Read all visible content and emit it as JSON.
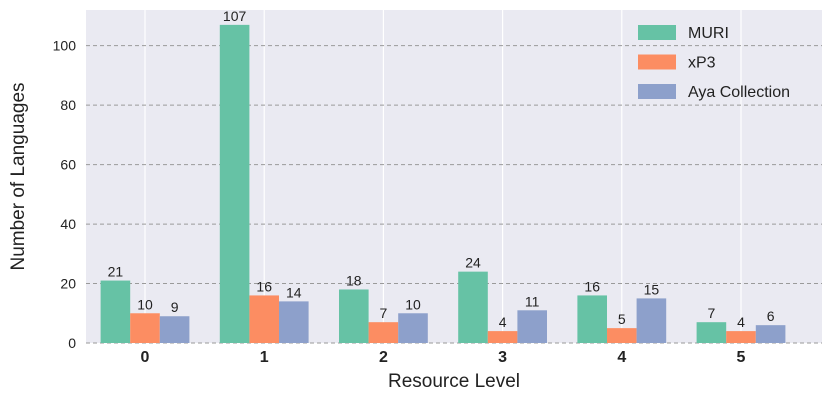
{
  "chart_data": {
    "type": "bar",
    "title": "",
    "xlabel": "Resource Level",
    "ylabel": "Number of Languages",
    "categories": [
      "0",
      "1",
      "2",
      "3",
      "4",
      "5"
    ],
    "series": [
      {
        "name": "MURI",
        "color": "#66c2a5",
        "values": [
          21,
          107,
          18,
          24,
          16,
          7
        ]
      },
      {
        "name": "xP3",
        "color": "#fc8d62",
        "values": [
          10,
          16,
          7,
          4,
          5,
          4
        ]
      },
      {
        "name": "Aya Collection",
        "color": "#8da0cb",
        "values": [
          9,
          14,
          10,
          11,
          15,
          6
        ]
      }
    ],
    "ylim": [
      0,
      112
    ],
    "yticks": [
      0,
      20,
      40,
      60,
      80,
      100
    ],
    "grid": {
      "y": "dashed",
      "x": "solid-white"
    },
    "legend": "top-right",
    "background": "#eaeaf2"
  }
}
